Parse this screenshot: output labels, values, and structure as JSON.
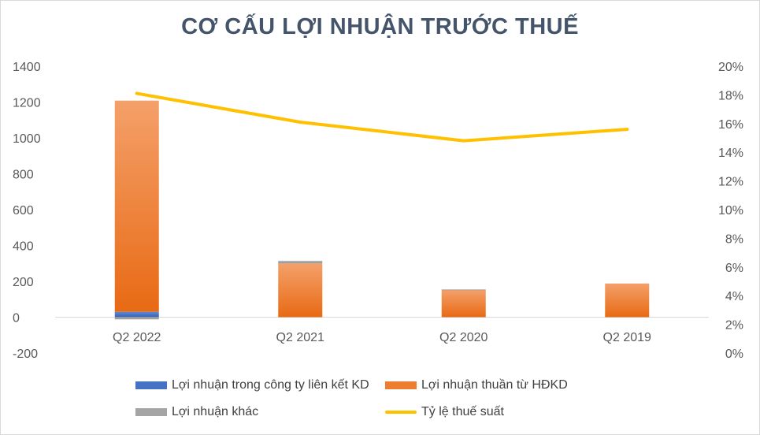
{
  "chart_data": {
    "type": "bar",
    "title": "CƠ CẤU LỢI NHUẬN TRƯỚC THUẾ",
    "categories": [
      "Q2 2022",
      "Q2 2021",
      "Q2 2020",
      "Q2 2019"
    ],
    "stacked": true,
    "series": [
      {
        "name": "Lợi nhuận trong công ty liên kết KD",
        "type": "bar",
        "axis": "left",
        "color": "#4472c4",
        "values": [
          30,
          0,
          0,
          0
        ]
      },
      {
        "name": "Lợi nhuận thuần từ HĐKD",
        "type": "bar",
        "axis": "left",
        "color": "#ed7d31",
        "values": [
          1178,
          300,
          152,
          188
        ]
      },
      {
        "name": "Lợi nhuận khác",
        "type": "bar",
        "axis": "left",
        "color": "#a5a5a5",
        "values": [
          -12,
          15,
          3,
          0
        ]
      },
      {
        "name": "Tỷ lệ thuế suất",
        "type": "line",
        "axis": "right",
        "color": "#ffc000",
        "values": [
          18.1,
          16.1,
          14.8,
          15.6
        ]
      }
    ],
    "y_left": {
      "ylim": [
        -200,
        1400
      ],
      "ticks": [
        "1400",
        "1200",
        "1000",
        "800",
        "600",
        "400",
        "200",
        "0",
        "-200"
      ]
    },
    "y_right": {
      "ylim": [
        0,
        20
      ],
      "ticks": [
        "20%",
        "18%",
        "16%",
        "14%",
        "12%",
        "10%",
        "8%",
        "6%",
        "4%",
        "2%",
        "0%"
      ]
    },
    "grid": false,
    "legend_position": "bottom"
  }
}
